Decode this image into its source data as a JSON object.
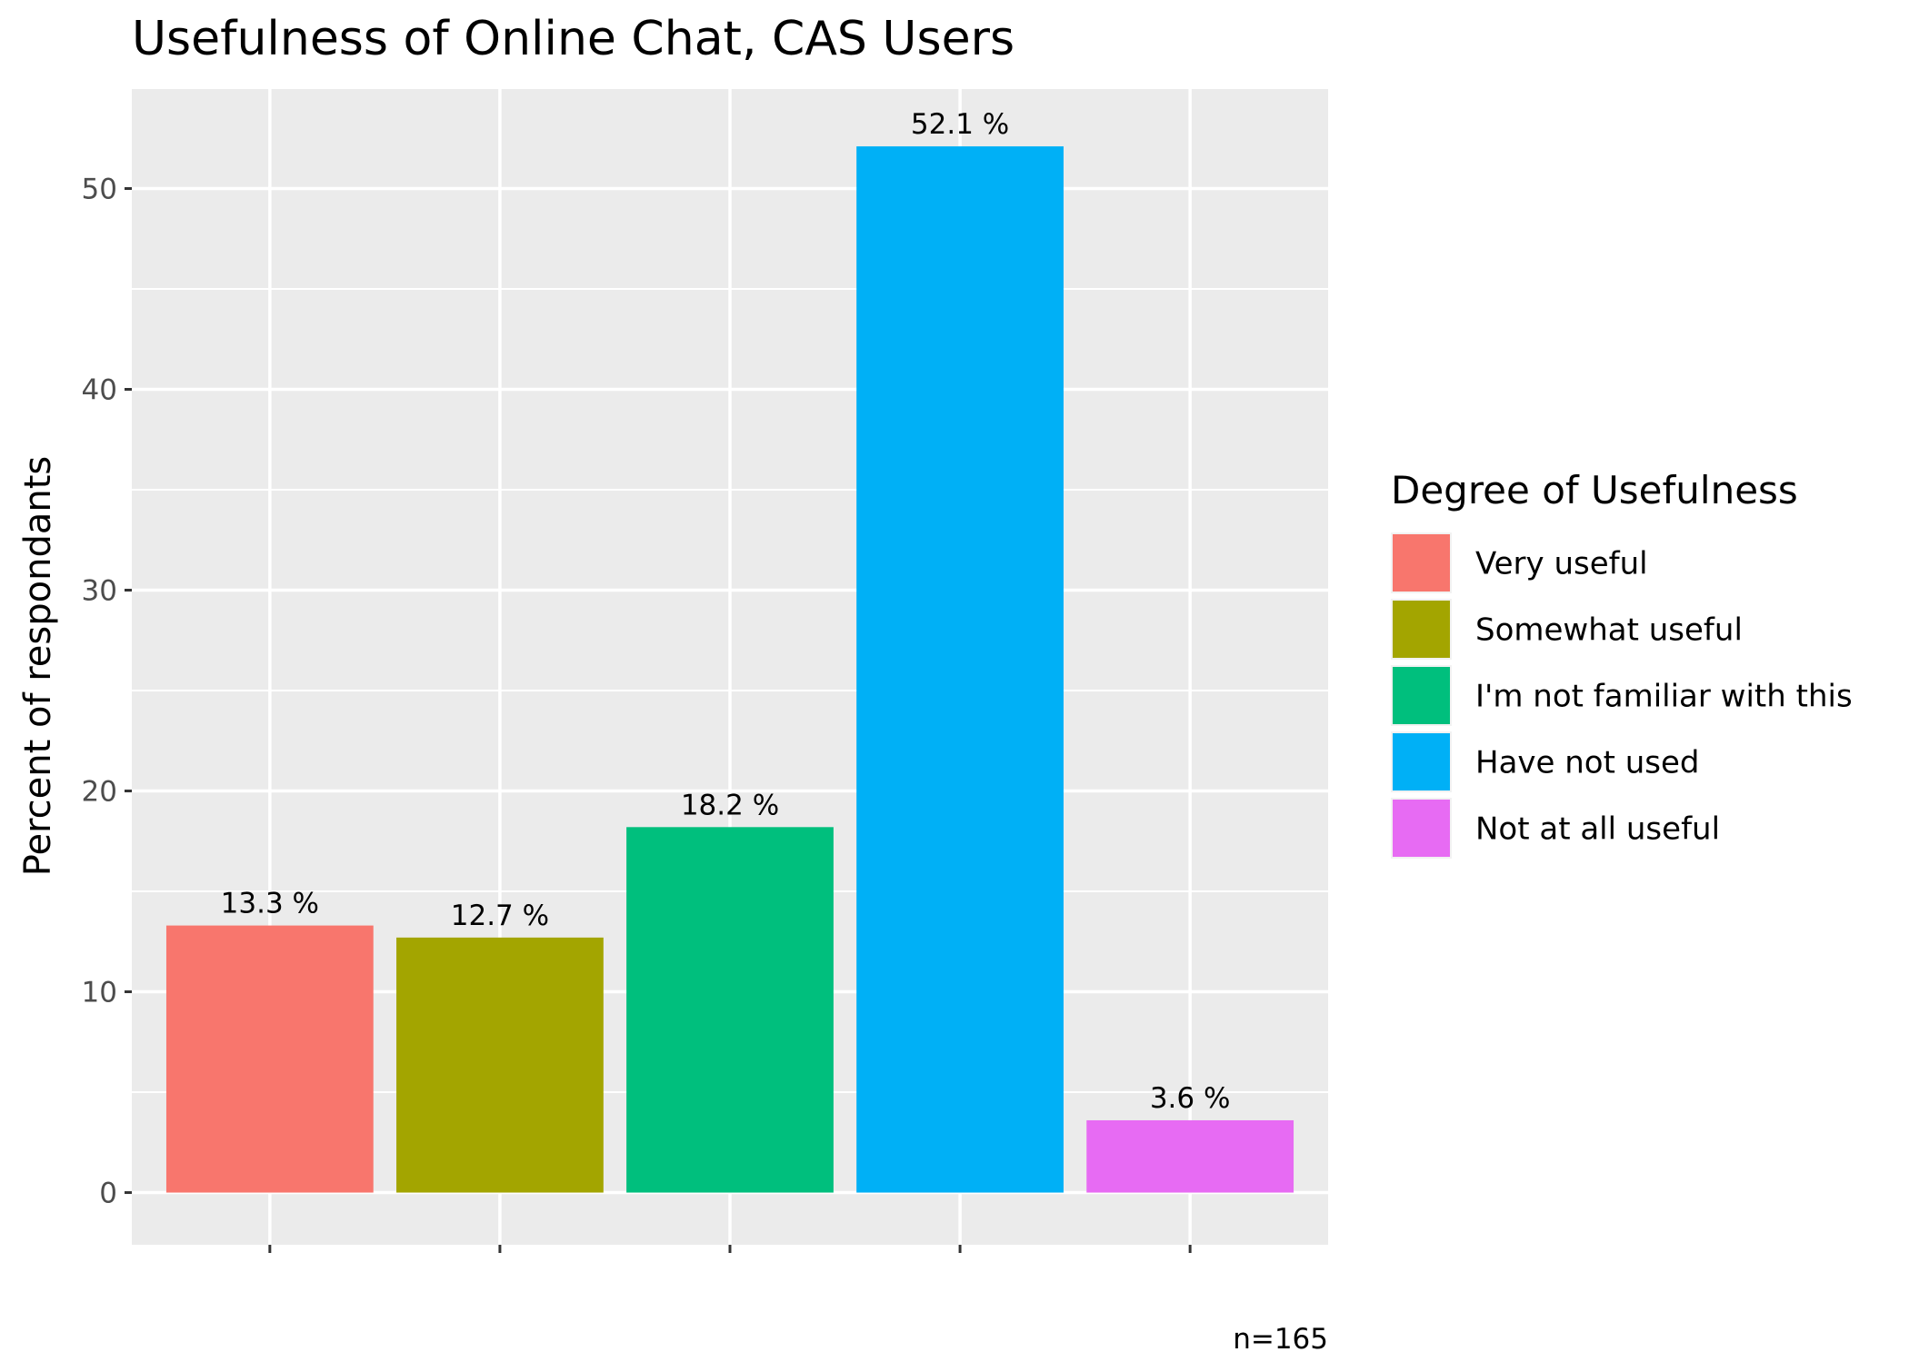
{
  "chart_data": {
    "type": "bar",
    "title": "Usefulness of Online Chat,  CAS Users",
    "xlabel": "",
    "ylabel": "Percent of respondants",
    "ylim": [
      -2.6,
      55
    ],
    "yticks": [
      0,
      10,
      20,
      30,
      40,
      50
    ],
    "categories": [
      "Very useful",
      "Somewhat useful",
      "I'm not familiar with this",
      "Have not used",
      "Not at all useful"
    ],
    "values": [
      13.3,
      12.7,
      18.2,
      52.1,
      3.6
    ],
    "data_labels": [
      "13.3 %",
      "12.7 %",
      "18.2 %",
      "52.1 %",
      "3.6 %"
    ],
    "colors": [
      "#F8766D",
      "#A3A500",
      "#00BF7D",
      "#00B0F6",
      "#E76BF3"
    ],
    "grid": true,
    "legend": {
      "title": "Degree of Usefulness",
      "position": "right",
      "entries": [
        "Very useful",
        "Somewhat useful",
        "I'm not familiar with this",
        "Have not used",
        "Not at all useful"
      ]
    },
    "caption": "n=165"
  },
  "style": {
    "panel_bg": "#EBEBEB",
    "grid_color": "#FFFFFF"
  }
}
